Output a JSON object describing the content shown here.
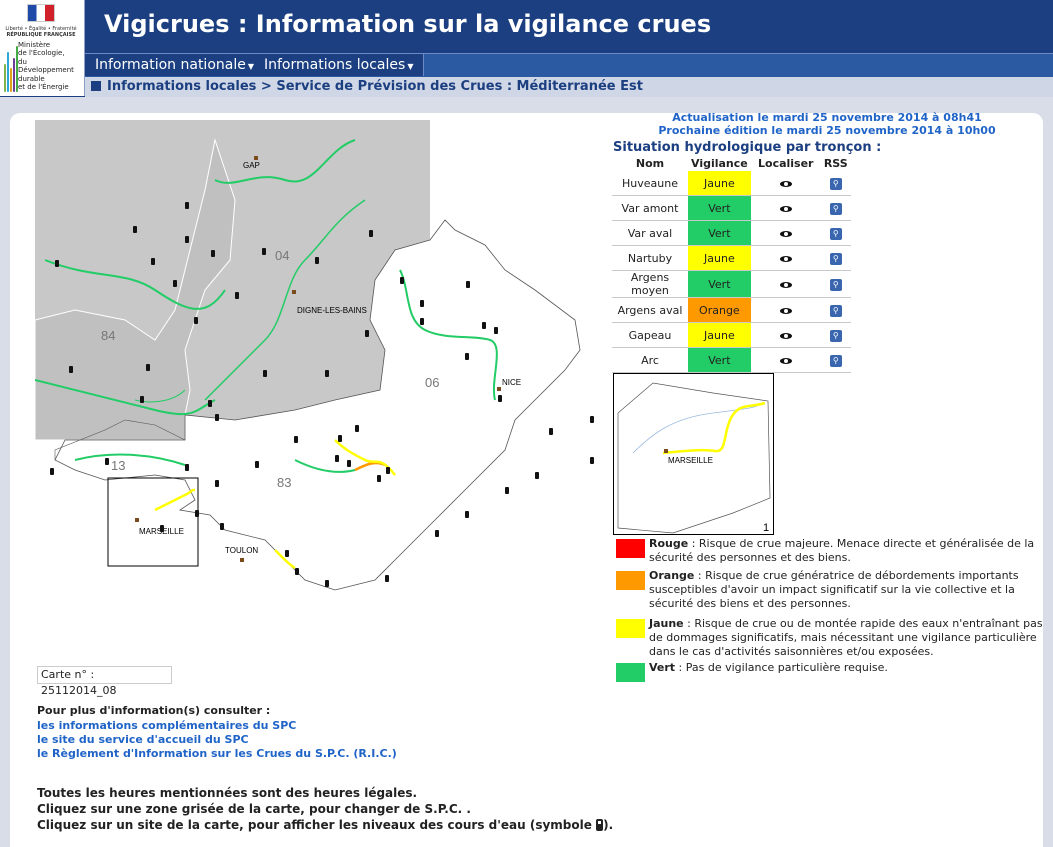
{
  "header": {
    "title": "Vigicrues : Information sur la vigilance crues",
    "republique": "RÉPUBLIQUE FRANÇAISE",
    "devise": "Liberté • Égalité • Fraternité",
    "ministry": [
      "Ministère",
      "de l'Écologie,",
      "du Développement",
      "durable",
      "et de l'Énergie"
    ]
  },
  "nav": {
    "national": "Information nationale",
    "local": "Informations locales"
  },
  "breadcrumb": "Informations locales > Service de Prévision des Crues : Méditerranée Est",
  "update": {
    "actualisation": "Actualisation le mardi 25 novembre 2014 à 08h41",
    "prochaine": "Prochaine édition le mardi 25 novembre 2014 à 10h00"
  },
  "table": {
    "title": "Situation hydrologique par tronçon :",
    "headers": [
      "Nom",
      "Vigilance",
      "Localiser",
      "RSS"
    ],
    "rows": [
      {
        "name": "Huveaune",
        "level": "Jaune",
        "color": "#ffff00"
      },
      {
        "name": "Var amont",
        "level": "Vert",
        "color": "#22cc66"
      },
      {
        "name": "Var aval",
        "level": "Vert",
        "color": "#22cc66"
      },
      {
        "name": "Nartuby",
        "level": "Jaune",
        "color": "#ffff00"
      },
      {
        "name": "Argens moyen",
        "level": "Vert",
        "color": "#22cc66"
      },
      {
        "name": "Argens aval",
        "level": "Orange",
        "color": "#ff9900"
      },
      {
        "name": "Gapeau",
        "level": "Jaune",
        "color": "#ffff00"
      },
      {
        "name": "Arc",
        "level": "Vert",
        "color": "#22cc66"
      }
    ]
  },
  "map": {
    "labels": {
      "gap": "GAP",
      "digne": "DIGNE-LES-BAINS",
      "nice": "NICE",
      "marseille": "MARSEILLE",
      "toulon": "TOULON",
      "d04": "04",
      "d84": "84",
      "d06": "06",
      "d83": "83",
      "d13": "13"
    },
    "inset_number": "1",
    "carte": "Carte n° : 25112014_08"
  },
  "legend": [
    {
      "color": "#ff0000",
      "name": "Rouge",
      "text": " : Risque de crue majeure. Menace directe et généralisée de la sécurité des personnes et des biens."
    },
    {
      "color": "#ff9900",
      "name": "Orange",
      "text": " : Risque de crue génératrice de débordements importants susceptibles d'avoir un impact significatif sur la vie collective et la sécurité des biens et des personnes."
    },
    {
      "color": "#ffff00",
      "name": "Jaune",
      "text": " : Risque de crue ou de montée rapide des eaux n'entraînant pas de dommages significatifs, mais nécessitant une vigilance particulière dans le cas d'activités saisonnières et/ou exposées."
    },
    {
      "color": "#22cc66",
      "name": "Vert",
      "text": " : Pas de vigilance particulière requise."
    }
  ],
  "info": {
    "intro": "Pour plus d'information(s) consulter :",
    "links": [
      "les informations complémentaires du SPC",
      "le site du service d'accueil du SPC",
      "le Règlement d'Information sur les Crues du S.P.C. (R.I.C.)"
    ]
  },
  "notes": {
    "line1": "Toutes les heures mentionnées sont des heures légales.",
    "line2": "Cliquez sur une zone grisée de la carte, pour changer de S.P.C. .",
    "line3a": "Cliquez sur un site de la carte, pour afficher les niveaux des cours d'eau (symbole ",
    "line3b": ")."
  },
  "colors": {
    "header": "#1b3f80",
    "nav": "#2c5aa2",
    "link": "#2064c8"
  }
}
